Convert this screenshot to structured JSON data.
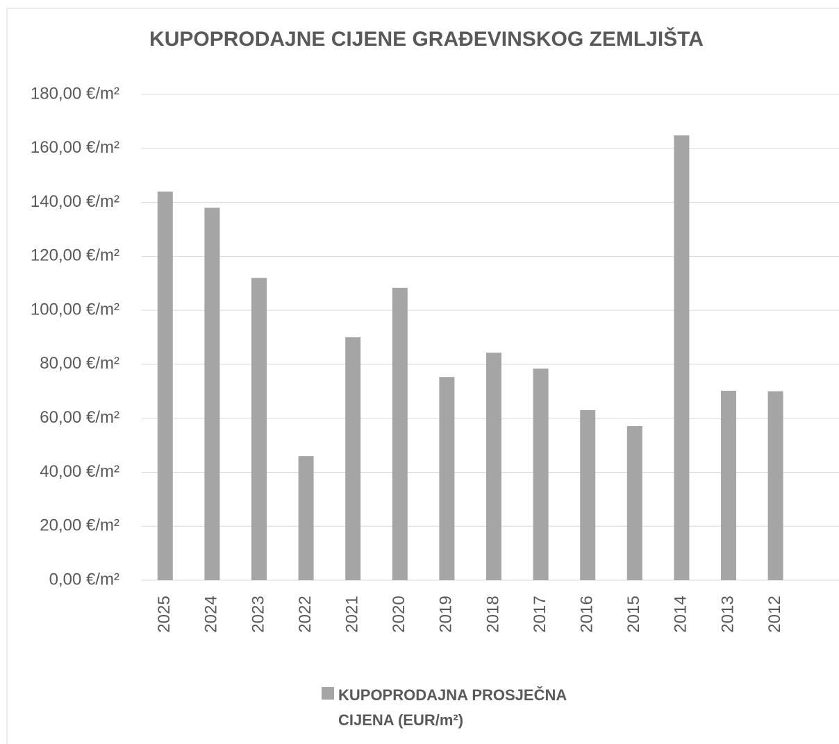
{
  "chart_data": {
    "type": "bar",
    "title": "KUPOPRODAJNE CIJENE GRAĐEVINSKOG ZEMLJIŠTA",
    "categories": [
      "2025",
      "2024",
      "2023",
      "2022",
      "2021",
      "2020",
      "2019",
      "2018",
      "2017",
      "2016",
      "2015",
      "2014",
      "2013",
      "2012"
    ],
    "series": [
      {
        "name": "KUPOPRODAJNA PROSJEČNA CIJENA (EUR/m²)",
        "color": "#a5a5a5",
        "values": [
          144,
          138,
          112,
          46,
          90,
          108.3,
          75.3,
          84.3,
          78.4,
          63,
          57.1,
          164.8,
          70.2,
          70
        ]
      }
    ],
    "ylim": [
      0,
      180
    ],
    "yticks": [
      {
        "value": 0,
        "label": "0,00 €/m²"
      },
      {
        "value": 20,
        "label": "20,00 €/m²"
      },
      {
        "value": 40,
        "label": "40,00 €/m²"
      },
      {
        "value": 60,
        "label": "60,00 €/m²"
      },
      {
        "value": 80,
        "label": "80,00 €/m²"
      },
      {
        "value": 100,
        "label": "100,00 €/m²"
      },
      {
        "value": 120,
        "label": "120,00 €/m²"
      },
      {
        "value": 140,
        "label": "140,00 €/m²"
      },
      {
        "value": 160,
        "label": "160,00 €/m²"
      },
      {
        "value": 180,
        "label": "180,00 €/m²"
      }
    ],
    "grid": true,
    "legend": "bottom"
  }
}
